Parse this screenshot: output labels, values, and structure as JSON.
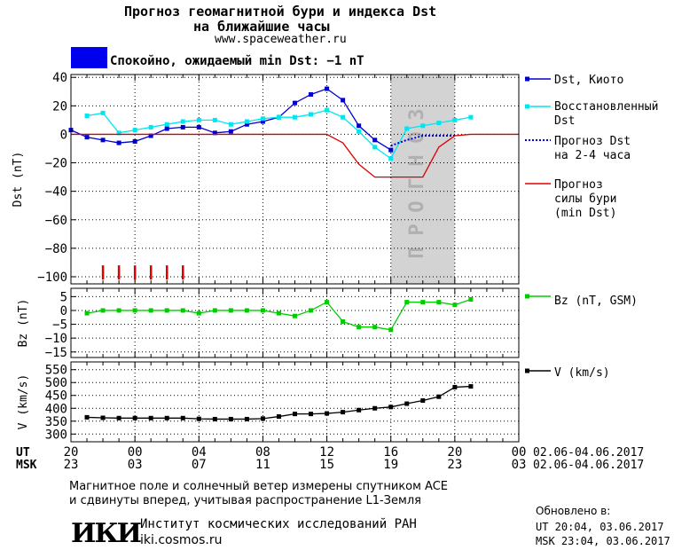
{
  "header": {
    "title_line1": "Прогноз геомагнитной бури и индекса Dst",
    "title_line2": "на ближайшие часы",
    "url": "www.spaceweather.ru"
  },
  "status": {
    "color": "#0000ee",
    "text": "Спокойно, ожидаемый min Dst: −1 nT"
  },
  "colors": {
    "dst": "#0000cc",
    "dst_restored": "#00e5ee",
    "forecast_dst": "#0000cc",
    "storm": "#dd0000",
    "bz": "#00cc00",
    "v": "#000000",
    "forecast_band": "#d3d3d3",
    "forecast_text": "#b0b0b0"
  },
  "chart_data": [
    {
      "type": "line",
      "panel": "dst",
      "ylabel": "Dst (nT)",
      "ylim": [
        -105,
        42
      ],
      "yticks": [
        40,
        20,
        0,
        -20,
        -40,
        -60,
        -80,
        -100
      ],
      "ytick_labels": [
        "40",
        "20",
        "0",
        "−20",
        "−40",
        "−60",
        "−80",
        "−100"
      ],
      "forecast_region": {
        "x_start": 20.0,
        "x_end": 24.0,
        "label": "ПРОГНОЗ"
      },
      "series": [
        {
          "name": "Dst, Киото",
          "style": "blue-square",
          "x": [
            0.0,
            1.0,
            2.0,
            3.0,
            4.0,
            5.0,
            6.0,
            7.0,
            8.0,
            9.0,
            10.0,
            11.0,
            12.0,
            13.0,
            14.0,
            15.0,
            16.0,
            17.0,
            18.0,
            19.0,
            20.0
          ],
          "y": [
            3,
            -2,
            -4,
            -6,
            -5,
            -1,
            4,
            5,
            5,
            1,
            2,
            7,
            9,
            12,
            22,
            28,
            32,
            24,
            6,
            -4,
            -11
          ]
        },
        {
          "name": "Восстановленный Dst",
          "style": "cyan-square",
          "x": [
            1.0,
            2.0,
            3.0,
            4.0,
            5.0,
            6.0,
            7.0,
            8.0,
            9.0,
            10.0,
            11.0,
            12.0,
            13.0,
            14.0,
            15.0,
            16.0,
            17.0,
            18.0,
            19.0,
            20.0,
            21.0,
            22.0,
            23.0,
            24.0,
            25.0
          ],
          "y": [
            13,
            15,
            1,
            3,
            5,
            7,
            9,
            10,
            10,
            7,
            9,
            11,
            12,
            12,
            14,
            17,
            12,
            2,
            -9,
            -17,
            4,
            6,
            8,
            10,
            12
          ]
        },
        {
          "name": "Прогноз Dst на 2-4 часа",
          "style": "blue-dotted",
          "x": [
            20.0,
            21.0,
            22.0,
            23.0,
            24.0
          ],
          "y": [
            -8,
            -4,
            -1,
            -1,
            -1
          ]
        },
        {
          "name": "Прогноз силы бури (min Dst)",
          "style": "red-line",
          "x": [
            0.0,
            16.0,
            17.0,
            18.0,
            19.0,
            20.0,
            21.0,
            22.0,
            23.0,
            24.0,
            25.0,
            26.0,
            27.0,
            28.0
          ],
          "y": [
            0,
            0,
            -6,
            -21,
            -30,
            -30,
            -30,
            -30,
            -9,
            -1,
            0,
            0,
            0,
            0
          ]
        }
      ],
      "storm_markers_x": [
        2.0,
        3.0,
        4.0,
        5.0,
        6.0,
        7.0
      ]
    },
    {
      "type": "line",
      "panel": "bz",
      "ylabel": "Bz (nT)",
      "ylim": [
        -17,
        8
      ],
      "yticks": [
        5,
        0,
        -5,
        -10,
        -15
      ],
      "ytick_labels": [
        "5",
        "0",
        "−5",
        "−10",
        "−15"
      ],
      "series": [
        {
          "name": "Bz (nT, GSM)",
          "style": "green-square",
          "x": [
            1.0,
            2.0,
            3.0,
            4.0,
            5.0,
            6.0,
            7.0,
            8.0,
            9.0,
            10.0,
            11.0,
            12.0,
            13.0,
            14.0,
            15.0,
            16.0,
            17.0,
            18.0,
            19.0,
            20.0,
            21.0,
            22.0,
            23.0,
            24.0,
            25.0
          ],
          "y": [
            -1,
            0,
            0,
            0,
            0,
            0,
            0,
            -1,
            0,
            0,
            0,
            0,
            -1,
            -2,
            0,
            3,
            -4,
            -6,
            -6,
            -7,
            3,
            3,
            3,
            2,
            4
          ]
        }
      ]
    },
    {
      "type": "line",
      "panel": "v",
      "ylabel": "V (km/s)",
      "ylim": [
        270,
        580
      ],
      "yticks": [
        550,
        500,
        450,
        400,
        350,
        300
      ],
      "ytick_labels": [
        "550",
        "500",
        "450",
        "400",
        "350",
        "300"
      ],
      "series": [
        {
          "name": "V (km/s)",
          "style": "black-square",
          "x": [
            1.0,
            2.0,
            3.0,
            4.0,
            5.0,
            6.0,
            7.0,
            8.0,
            9.0,
            10.0,
            11.0,
            12.0,
            13.0,
            14.0,
            15.0,
            16.0,
            17.0,
            18.0,
            19.0,
            20.0,
            21.0,
            22.0,
            23.0,
            24.0,
            25.0
          ],
          "y": [
            365,
            363,
            362,
            362,
            362,
            362,
            362,
            359,
            358,
            358,
            358,
            360,
            368,
            378,
            378,
            380,
            385,
            393,
            400,
            405,
            418,
            430,
            445,
            482,
            485
          ]
        }
      ]
    }
  ],
  "time_axis": {
    "x_range": [
      0,
      28
    ],
    "ut_row_label": "UT",
    "msk_row_label": "MSK",
    "ut_labels": [
      "20",
      "00",
      "04",
      "08",
      "12",
      "16",
      "20",
      "00"
    ],
    "msk_labels": [
      "23",
      "03",
      "07",
      "11",
      "15",
      "19",
      "23",
      "03"
    ],
    "date_range": "02.06-04.06.2017"
  },
  "footnote": {
    "line1": "Магнитное поле и солнечный ветер измерены спутником ACE",
    "line2": "и сдвинуты вперед, учитывая распространение L1-Земля"
  },
  "institute": {
    "logo_text": "ИКИ",
    "name": "Институт космических исследований РАН",
    "site": "iki.cosmos.ru"
  },
  "updated": {
    "label": "Обновлено в:",
    "ut": "UT  20:04, 03.06.2017",
    "msk": "MSK 23:04, 03.06.2017"
  }
}
